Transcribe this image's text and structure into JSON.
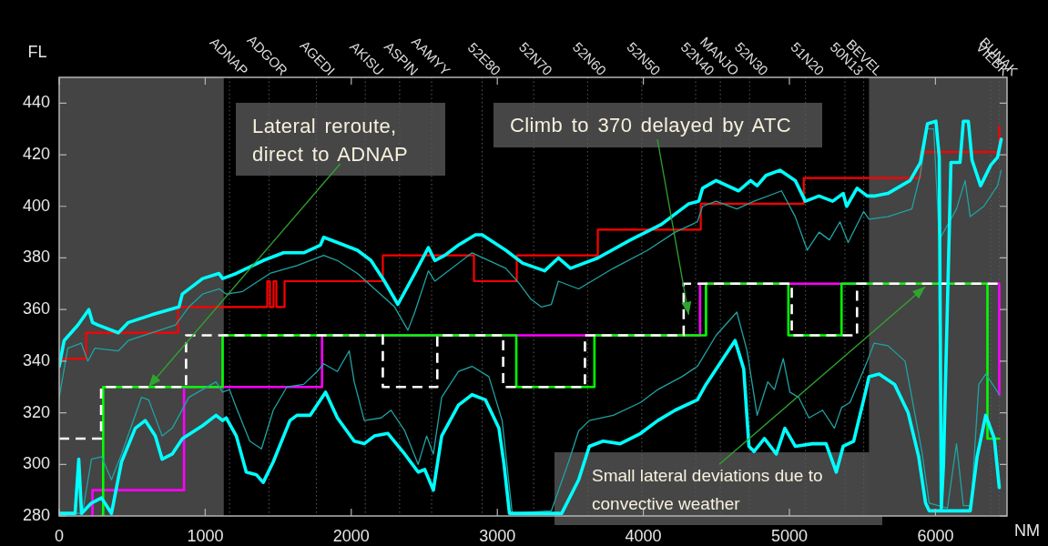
{
  "chart_data": {
    "type": "line",
    "xlabel": "NM",
    "ylabel": "FL",
    "xlim": [
      0,
      6490
    ],
    "xticks": [
      0,
      1000,
      2000,
      3000,
      4000,
      5000,
      6000
    ],
    "ylim": [
      280,
      450
    ],
    "yticks": [
      280,
      300,
      320,
      340,
      360,
      380,
      400,
      420,
      440
    ],
    "bands": [
      {
        "axis": "x",
        "from": 0,
        "to": 1127,
        "color": "#444444"
      },
      {
        "axis": "x",
        "from": 5545,
        "to": 6490,
        "color": "#444444"
      }
    ],
    "ref_lines": [
      {
        "axis": "x",
        "value": 1166,
        "label": "ADNAP",
        "line_style": "dotted",
        "color": "#5a5a5a"
      },
      {
        "axis": "x",
        "value": 1436,
        "label": "ADGOR",
        "line_style": "dotted",
        "color": "#5a5a5a"
      },
      {
        "axis": "x",
        "value": 1761,
        "label": "AGEDI",
        "line_style": "dotted",
        "color": "#5a5a5a"
      },
      {
        "axis": "x",
        "value": 2096,
        "label": "AKISU",
        "line_style": "dotted",
        "color": "#5a5a5a"
      },
      {
        "axis": "x",
        "value": 2331,
        "label": "ASPIN",
        "line_style": "dotted",
        "color": "#5a5a5a"
      },
      {
        "axis": "x",
        "value": 2550,
        "label": "AAMYY",
        "line_style": "dotted",
        "color": "#5a5a5a"
      },
      {
        "axis": "x",
        "value": 2896,
        "label": "52E80",
        "line_style": "dotted",
        "color": "#5a5a5a"
      },
      {
        "axis": "x",
        "value": 3249,
        "label": "52N70",
        "line_style": "dotted",
        "color": "#5a5a5a"
      },
      {
        "axis": "x",
        "value": 3618,
        "label": "52N60",
        "line_style": "dotted",
        "color": "#5a5a5a"
      },
      {
        "axis": "x",
        "value": 3989,
        "label": "52N50",
        "line_style": "dotted",
        "color": "#5a5a5a"
      },
      {
        "axis": "x",
        "value": 4358,
        "label": "52N40",
        "line_style": "dotted",
        "color": "#5a5a5a"
      },
      {
        "axis": "x",
        "value": 4527,
        "label": "MANJO",
        "line_style": "dotted",
        "color": "#5a5a5a"
      },
      {
        "axis": "x",
        "value": 4727,
        "label": "52N30",
        "line_style": "dotted",
        "color": "#5a5a5a"
      },
      {
        "axis": "x",
        "value": 5110,
        "label": "51N20",
        "line_style": "dotted",
        "color": "#5a5a5a"
      },
      {
        "axis": "x",
        "value": 5380,
        "label": "50N13",
        "line_style": "dotted",
        "color": "#5a5a5a"
      },
      {
        "axis": "x",
        "value": 5509,
        "label": "BEVEL",
        "line_style": "dotted",
        "color": "#5a5a5a"
      },
      {
        "axis": "x",
        "value": 6379,
        "label": "VIEBK",
        "line_style": "dotted",
        "color": "#5a5a5a"
      },
      {
        "axis": "x",
        "value": 6437,
        "label": "BUNAK",
        "line_style": "dotted",
        "color": "#5a5a5a"
      }
    ],
    "annotations": [
      {
        "text": "Lateral reroute, direct to ADNAP",
        "x": 613,
        "y": 330
      },
      {
        "text": "Climb to 370 delayed by ATC",
        "x": 4310,
        "y": 358
      },
      {
        "text": "Small lateral deviations due to convective weather",
        "x": 5930,
        "y": 369
      }
    ],
    "series": [
      {
        "type": "line",
        "color": "#00ffff",
        "x": [
          0,
          34,
          128,
          203,
          228,
          265,
          405,
          474,
          636,
          820,
          843,
          982,
          1094,
          1119,
          1213,
          1397,
          1536,
          1674,
          1789,
          1811,
          1905,
          2042,
          2135,
          2227,
          2319,
          2435,
          2528,
          2572,
          2640,
          2734,
          2850,
          2896,
          3058,
          3173,
          3324,
          3418,
          3501,
          3688,
          3912,
          4123,
          4311,
          4380,
          4405,
          4498,
          4652,
          4734,
          4779,
          4840,
          4935,
          5040,
          5109,
          5203,
          5296,
          5368,
          5392,
          5463,
          5533,
          5580,
          5674,
          5826,
          5897,
          5945,
          6003,
          6026,
          6040,
          6055,
          6106,
          6168,
          6191,
          6225,
          6250,
          6309,
          6379,
          6425,
          6450
        ],
        "values": [
          338,
          348,
          354,
          360,
          355,
          354,
          351,
          355,
          358,
          361,
          366,
          372,
          374,
          372,
          374,
          379,
          382,
          382,
          385,
          388,
          386,
          383,
          379,
          371,
          362,
          374,
          384,
          379,
          381,
          385,
          389,
          389,
          383,
          378,
          375,
          380,
          376,
          380,
          387,
          393,
          401,
          402,
          407,
          410,
          406,
          410,
          408,
          412,
          414,
          410,
          402,
          404,
          402,
          405,
          400,
          407,
          404,
          404,
          405,
          410,
          417,
          432,
          433,
          419,
          283,
          300,
          417,
          417,
          433,
          433,
          418,
          408,
          416,
          419,
          426
        ]
      },
      {
        "type": "line",
        "color": "#1fa3a3",
        "x": [
          0,
          59,
          151,
          196,
          244,
          405,
          474,
          636,
          797,
          888,
          982,
          1097,
          1144,
          1256,
          1443,
          1628,
          1811,
          1905,
          2042,
          2179,
          2297,
          2388,
          2435,
          2528,
          2572,
          2827,
          3058,
          3152,
          3230,
          3301,
          3370,
          3418,
          3557,
          3794,
          4029,
          4218,
          4370,
          4405,
          4498,
          4640,
          4758,
          4946,
          5040,
          5122,
          5203,
          5274,
          5346,
          5402,
          5508,
          5545,
          5674,
          5838,
          5895,
          5945,
          5988,
          6026,
          6144,
          6203,
          6238,
          6331,
          6425,
          6450
        ],
        "values": [
          326,
          345,
          347,
          340,
          345,
          344,
          348,
          351,
          354,
          361,
          366,
          368,
          366,
          367,
          374,
          377,
          381,
          379,
          374,
          367,
          361,
          352,
          359,
          375,
          371,
          382,
          376,
          370,
          364,
          361,
          362,
          371,
          368,
          376,
          383,
          390,
          394,
          400,
          402,
          399,
          402,
          406,
          396,
          383,
          390,
          387,
          394,
          386,
          398,
          395,
          396,
          399,
          412,
          430,
          430,
          387,
          399,
          410,
          396,
          400,
          408,
          414
        ]
      },
      {
        "type": "line",
        "color": "#00ffff",
        "x": [
          0,
          109,
          134,
          153,
          221,
          290,
          358,
          427,
          521,
          589,
          658,
          705,
          774,
          844,
          982,
          1074,
          1119,
          1144,
          1213,
          1281,
          1350,
          1397,
          1466,
          1580,
          1628,
          1718,
          1824,
          1905,
          2020,
          2089,
          2158,
          2251,
          2366,
          2458,
          2503,
          2562,
          2619,
          2734,
          2827,
          2919,
          3011,
          3046,
          3083,
          3441,
          3557,
          3630,
          3724,
          3841,
          3981,
          4099,
          4218,
          4370,
          4429,
          4546,
          4628,
          4687,
          4723,
          4758,
          4829,
          4910,
          4969,
          5040,
          5157,
          5251,
          5321,
          5368,
          5440,
          5521,
          5545,
          5614,
          5720,
          5813,
          5885,
          5932,
          5957,
          6238,
          6285,
          6344,
          6403,
          6437
        ],
        "values": [
          281,
          281,
          302,
          281,
          285,
          287,
          281,
          301,
          314,
          317,
          311,
          302,
          304,
          310,
          315,
          319,
          317,
          318,
          311,
          297,
          296,
          293,
          301,
          317,
          319,
          319,
          328,
          318,
          309,
          308,
          311,
          312,
          304,
          297,
          298,
          290,
          311,
          323,
          327,
          325,
          314,
          300,
          281,
          281,
          294,
          307,
          309,
          308,
          312,
          317,
          321,
          325,
          331,
          341,
          348,
          337,
          307,
          305,
          310,
          304,
          314,
          307,
          308,
          308,
          297,
          307,
          309,
          328,
          334,
          335,
          331,
          320,
          303,
          285,
          282,
          282,
          303,
          319,
          310,
          291
        ]
      },
      {
        "type": "line",
        "color": "#1fa3a3",
        "x": [
          0,
          159,
          221,
          290,
          358,
          427,
          564,
          613,
          705,
          774,
          888,
          1074,
          1119,
          1166,
          1213,
          1305,
          1385,
          1466,
          1559,
          1674,
          1766,
          1811,
          1905,
          1986,
          2020,
          2089,
          2204,
          2272,
          2366,
          2458,
          2516,
          2562,
          2619,
          2734,
          2827,
          2942,
          3033,
          3102,
          3370,
          3488,
          3557,
          3630,
          3794,
          3981,
          4099,
          4264,
          4370,
          4498,
          4640,
          4710,
          4779,
          4852,
          4897,
          4958,
          5003,
          5063,
          5134,
          5227,
          5308,
          5357,
          5415,
          5533,
          5580,
          5674,
          5792,
          5907,
          5957,
          6082,
          6144,
          6191,
          6244,
          6297,
          6344,
          6403,
          6437
        ],
        "values": [
          281,
          281,
          302,
          303,
          294,
          304,
          326,
          325,
          311,
          314,
          326,
          332,
          328,
          329,
          322,
          309,
          306,
          321,
          330,
          331,
          336,
          339,
          336,
          344,
          332,
          317,
          318,
          321,
          313,
          300,
          311,
          304,
          326,
          336,
          338,
          334,
          317,
          281,
          282,
          301,
          313,
          317,
          319,
          324,
          329,
          334,
          338,
          350,
          359,
          344,
          319,
          332,
          329,
          341,
          328,
          326,
          318,
          321,
          314,
          322,
          324,
          340,
          347,
          346,
          340,
          305,
          285,
          283,
          308,
          284,
          284,
          331,
          335,
          330,
          327
        ]
      },
      {
        "type": "step",
        "color": "#ff0000",
        "x": [
          0,
          184,
          814,
          1425,
          1443,
          1468,
          1487,
          1543,
          2216,
          2840,
          3133,
          3688,
          4393,
          5098,
          5897,
          6437
        ],
        "values": [
          341,
          351,
          361,
          371,
          361,
          371,
          361,
          371,
          381,
          371,
          381,
          391,
          401,
          411,
          421,
          431
        ]
      },
      {
        "type": "step",
        "color": "#ffffff",
        "line_style": "dashed",
        "x": [
          0,
          287,
          869,
          2216,
          2589,
          3040,
          3600,
          4276,
          5016,
          5463,
          6437
        ],
        "values": [
          310,
          330,
          350,
          330,
          350,
          330,
          350,
          370,
          350,
          370,
          370
        ]
      },
      {
        "type": "step",
        "color": "#00ff00",
        "x": [
          290,
          301,
          1119,
          3130,
          3665,
          4429,
          4993,
          5357,
          6356,
          6437
        ],
        "values": [
          280,
          330,
          350,
          330,
          350,
          370,
          350,
          370,
          310,
          310
        ]
      },
      {
        "type": "step",
        "color": "#ff00ff",
        "x": [
          221,
          228,
          855,
          1800,
          4388,
          6437
        ],
        "values": [
          280,
          290,
          330,
          350,
          370,
          327
        ]
      }
    ]
  }
}
